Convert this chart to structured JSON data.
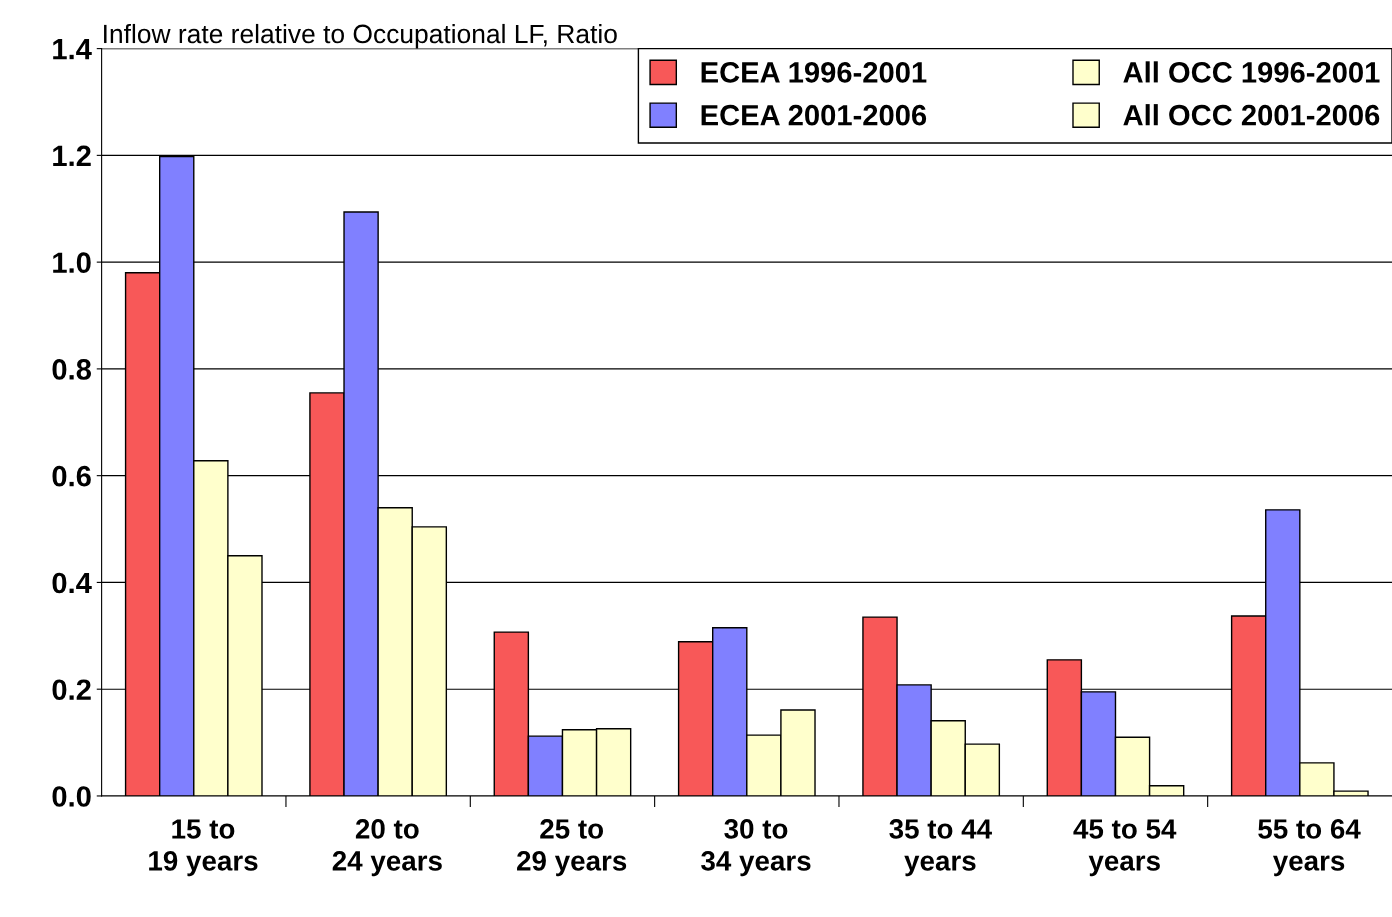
{
  "chart_data": {
    "type": "bar",
    "title": "Inflow rate relative to Occupational LF, Ratio",
    "categories": [
      "15 to\n19 years",
      "20 to\n24 years",
      "25 to\n29 years",
      "30 to\n34 years",
      "35 to 44\nyears",
      "45 to 54\nyears",
      "55 to 64\nyears"
    ],
    "series": [
      {
        "name": "ECEA 1996-2001",
        "color": "#f85858",
        "values": [
          0.98,
          0.755,
          0.307,
          0.289,
          0.335,
          0.255,
          0.337
        ]
      },
      {
        "name": "ECEA 2001-2006",
        "color": "#8080ff",
        "values": [
          1.198,
          1.094,
          0.112,
          0.315,
          0.208,
          0.195,
          0.536
        ]
      },
      {
        "name": "All OCC 1996-2001",
        "color": "#ffffcc",
        "values": [
          0.628,
          0.54,
          0.124,
          0.114,
          0.141,
          0.11,
          0.062
        ]
      },
      {
        "name": "All OCC 2001-2006",
        "color": "#ffffcc",
        "values": [
          0.45,
          0.504,
          0.126,
          0.161,
          0.097,
          0.019,
          0.009
        ]
      }
    ],
    "ylim": [
      0,
      1.4
    ],
    "yticks": [
      {
        "value": 0,
        "label": "0.0"
      },
      {
        "value": 0.2,
        "label": "0.2"
      },
      {
        "value": 0.4,
        "label": "0.4"
      },
      {
        "value": 0.6,
        "label": "0.6"
      },
      {
        "value": 0.8,
        "label": "0.8"
      },
      {
        "value": 1.0,
        "label": "1.0"
      },
      {
        "value": 1.2,
        "label": "1.2"
      },
      {
        "value": 1.4,
        "label": "1.4"
      }
    ],
    "grid": "y",
    "legend": "top right"
  }
}
